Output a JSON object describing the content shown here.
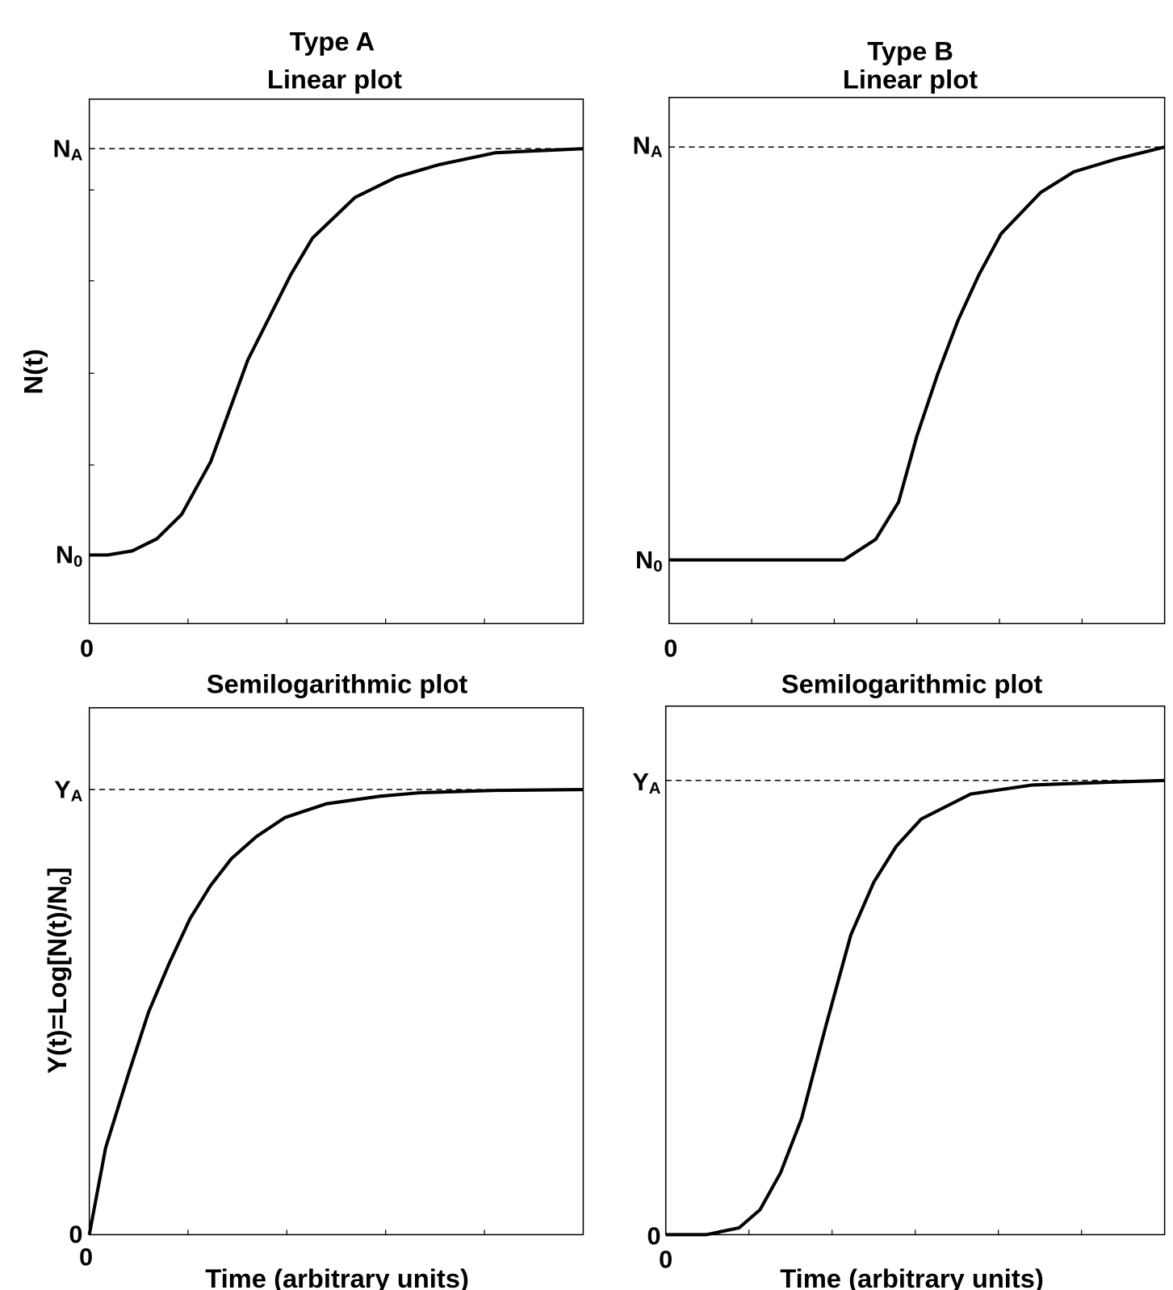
{
  "chart_data": [
    {
      "type": "line",
      "group_title": "Type A",
      "title": "Linear plot",
      "xlabel": "",
      "ylabel": "N(t)",
      "x_tick_labels": [
        "0"
      ],
      "y_labels": [
        {
          "main": "N",
          "sub": "A"
        },
        {
          "main": "N",
          "sub": "0"
        }
      ],
      "xlim": [
        0,
        100
      ],
      "ylim_normalized": [
        -0.17,
        1.12
      ],
      "reference_line": {
        "style": "dashed",
        "level": 1,
        "label": "NA"
      },
      "series": [
        {
          "name": "N(t)",
          "x": [
            0,
            3.7,
            8.7,
            13.7,
            18.7,
            24.6,
            32.1,
            40.8,
            45.2,
            53.8,
            62.2,
            70.6,
            82.3,
            100
          ],
          "y": [
            0,
            0,
            0.01,
            0.04,
            0.1,
            0.23,
            0.48,
            0.69,
            0.78,
            0.88,
            0.93,
            0.96,
            0.99,
            1.0
          ]
        }
      ]
    },
    {
      "type": "line",
      "group_title": "Type B",
      "title": "Linear plot",
      "xlabel": "",
      "ylabel": "",
      "x_tick_labels": [
        "0"
      ],
      "y_labels": [
        {
          "main": "N",
          "sub": "A"
        },
        {
          "main": "N",
          "sub": "0"
        }
      ],
      "xlim": [
        0,
        100
      ],
      "ylim_normalized": [
        -0.15,
        1.12
      ],
      "reference_line": {
        "style": "dashed",
        "level": 1,
        "label": "NA"
      },
      "series": [
        {
          "name": "N(t)",
          "x": [
            0,
            35.3,
            41.7,
            46.3,
            50,
            54.2,
            58.3,
            62.5,
            67,
            75,
            81.7,
            90,
            100
          ],
          "y": [
            0,
            0,
            0.05,
            0.14,
            0.3,
            0.45,
            0.58,
            0.69,
            0.79,
            0.89,
            0.94,
            0.97,
            1.0
          ]
        }
      ]
    },
    {
      "type": "line",
      "title": "Semilogarithmic plot",
      "xlabel": "Time (arbitrary units)",
      "ylabel": {
        "main": "Y(t)=Log[N(t)/N",
        "sub": "0",
        "end": "]"
      },
      "x_tick_labels": [
        "0"
      ],
      "y_labels": [
        {
          "main": "Y",
          "sub": "A"
        },
        {
          "main": "0",
          "sub": ""
        }
      ],
      "xlim": [
        0,
        100
      ],
      "ylim_normalized": [
        0,
        1.18
      ],
      "reference_line": {
        "style": "dashed",
        "level": 1,
        "label": "YA"
      },
      "series": [
        {
          "name": "Y(t)",
          "x": [
            0,
            3.3,
            7.9,
            12,
            16.2,
            20.4,
            24.6,
            28.8,
            33.8,
            39.6,
            48,
            58.9,
            67.2,
            82.3,
            100
          ],
          "y": [
            0,
            0.195,
            0.36,
            0.5,
            0.61,
            0.71,
            0.785,
            0.845,
            0.894,
            0.937,
            0.968,
            0.985,
            0.993,
            0.998,
            1.0
          ]
        }
      ]
    },
    {
      "type": "line",
      "title": "Semilogarithmic plot",
      "xlabel": "Time (arbitrary units)",
      "ylabel": "",
      "x_tick_labels": [
        "0"
      ],
      "y_labels": [
        {
          "main": "Y",
          "sub": "A"
        },
        {
          "main": "0",
          "sub": ""
        }
      ],
      "xlim": [
        0,
        100
      ],
      "ylim_normalized": [
        0,
        1.16
      ],
      "reference_line": {
        "style": "dashed",
        "level": 1,
        "label": "YA"
      },
      "series": [
        {
          "name": "Y(t)",
          "x": [
            0,
            8.1,
            14.7,
            18.9,
            23,
            27.2,
            32.1,
            37.1,
            41.7,
            46.2,
            51.2,
            61.1,
            73.5,
            88.4,
            100
          ],
          "y": [
            0,
            0,
            0.015,
            0.055,
            0.136,
            0.255,
            0.46,
            0.66,
            0.776,
            0.855,
            0.915,
            0.97,
            0.99,
            0.996,
            1.0
          ]
        }
      ]
    }
  ]
}
